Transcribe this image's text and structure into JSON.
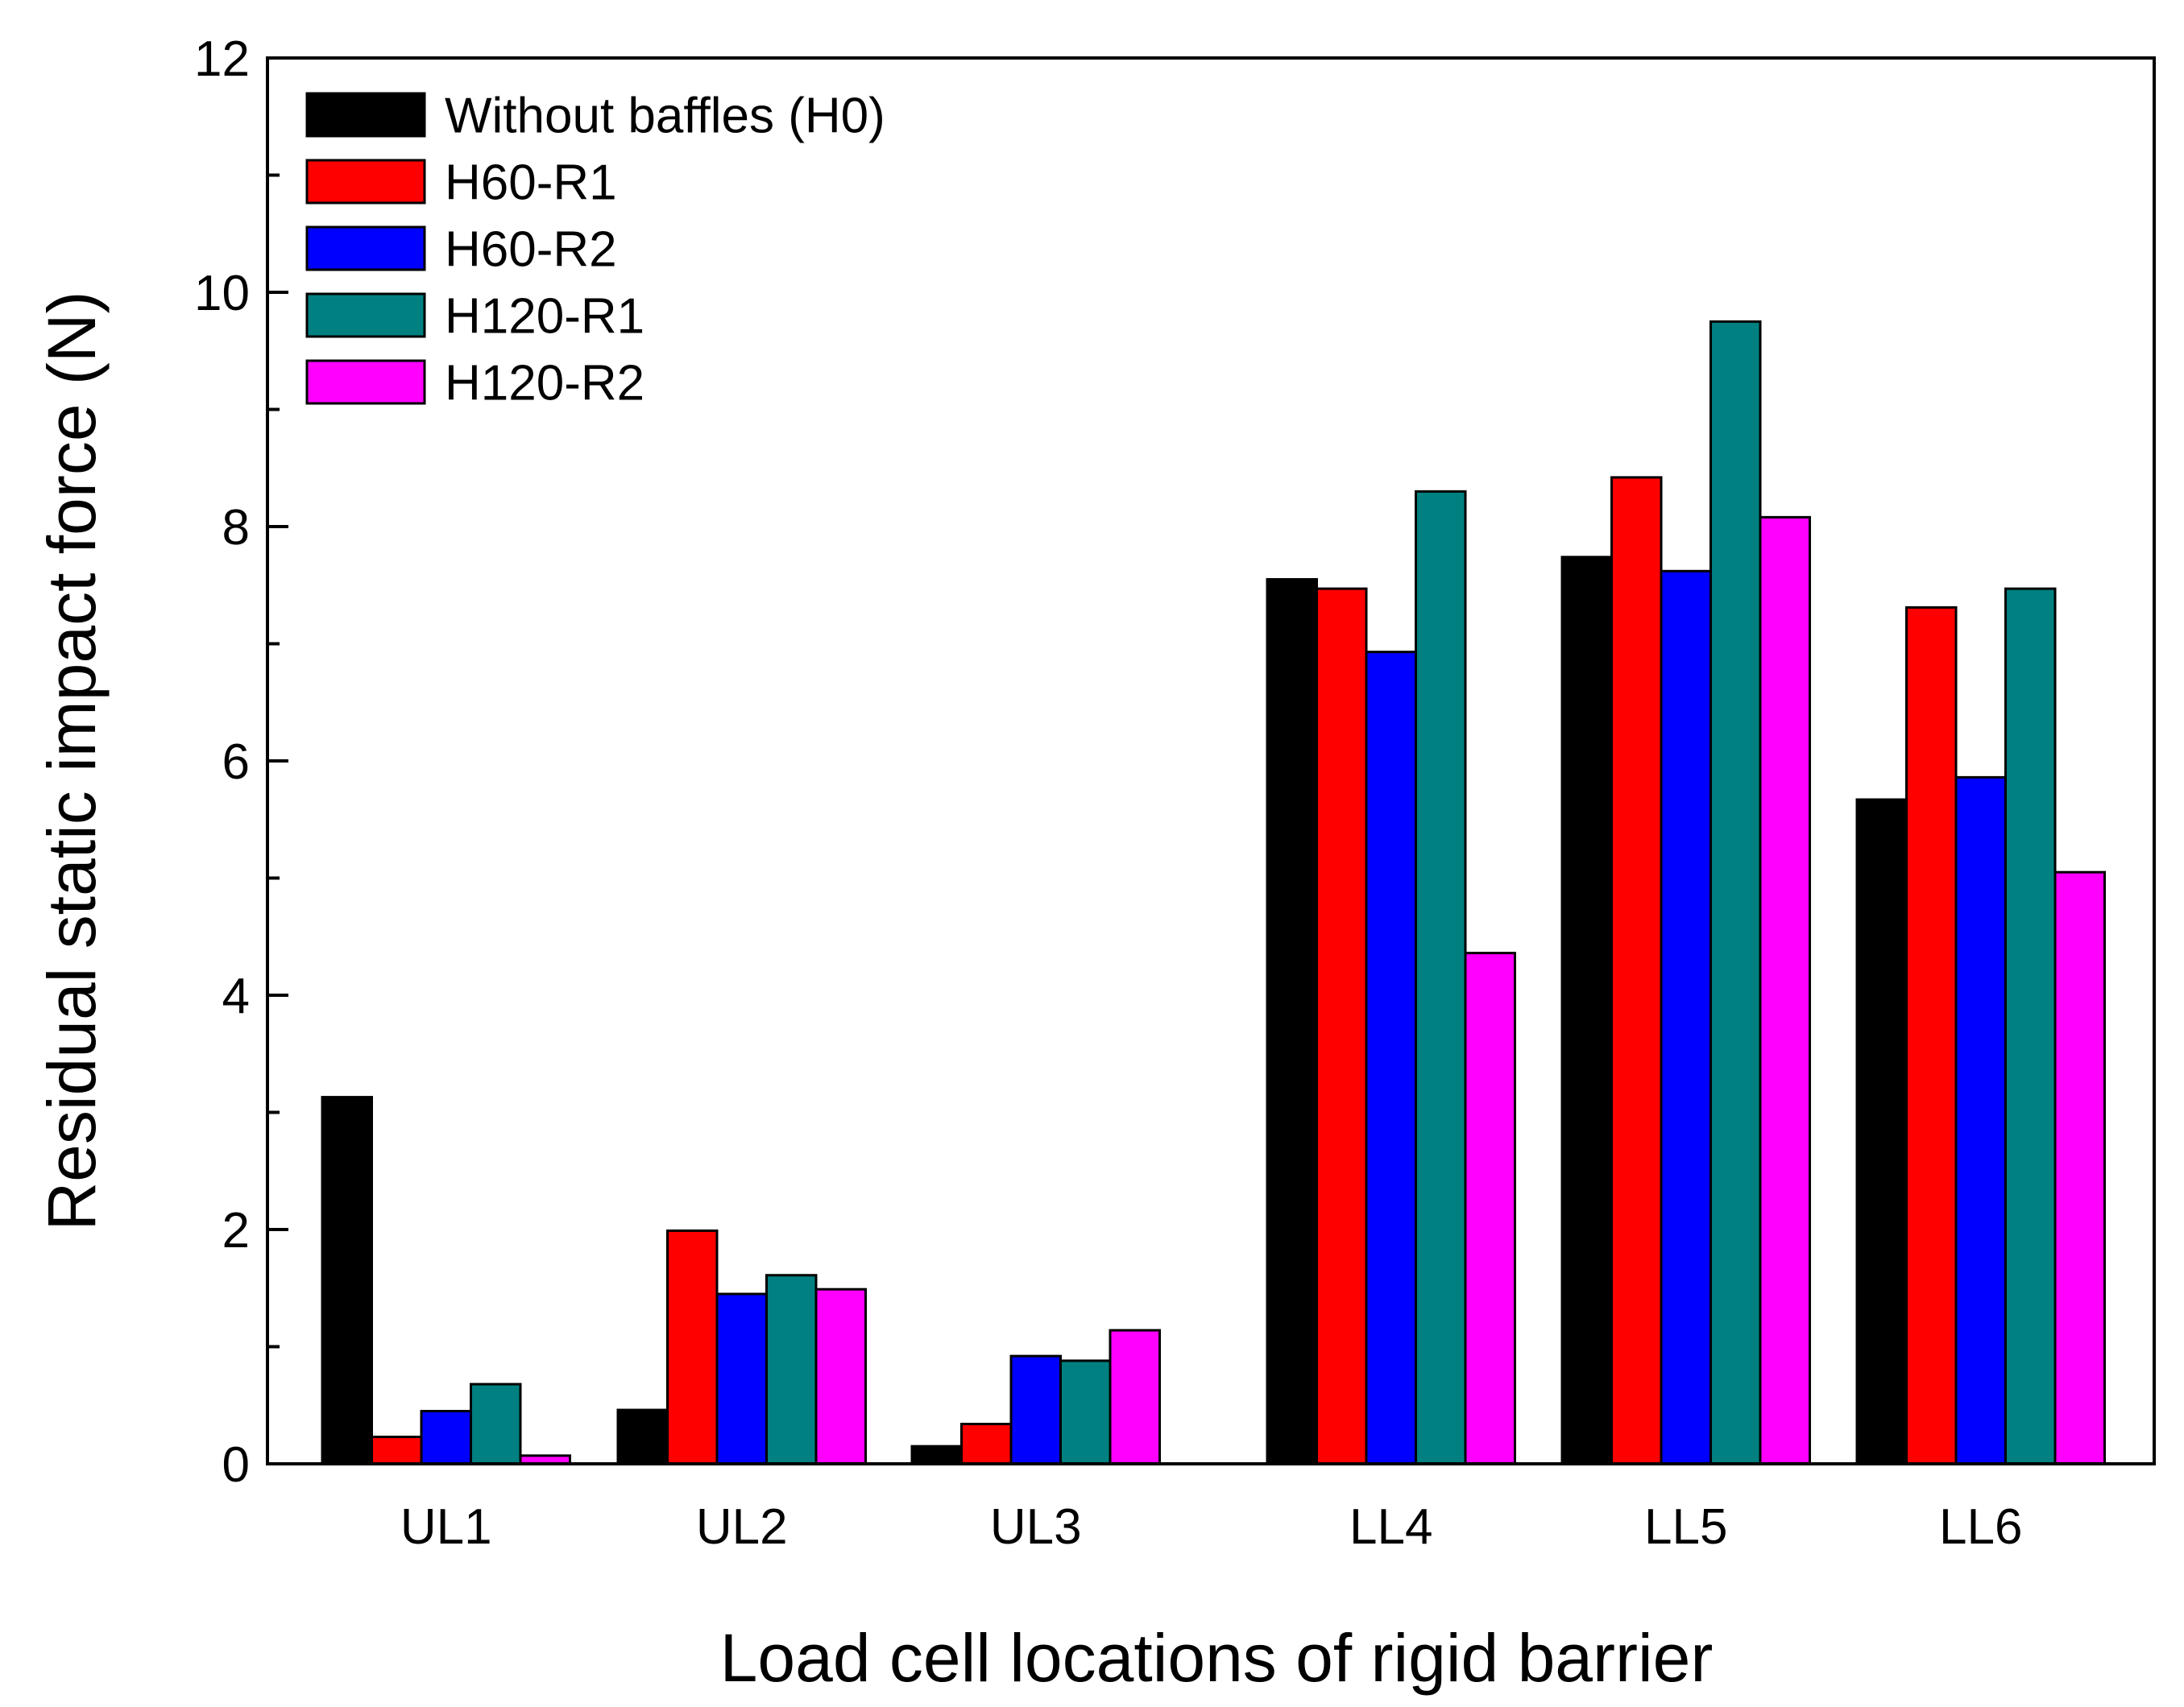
{
  "chart_data": {
    "type": "bar",
    "title": "",
    "xlabel": "Load cell locations of rigid barrier",
    "ylabel": "Residual static impact force (N)",
    "ylim": [
      0,
      12
    ],
    "yticks": [
      0,
      2,
      4,
      6,
      8,
      10,
      12
    ],
    "yticks_minor": [
      1,
      3,
      5,
      7,
      9,
      11
    ],
    "grid": false,
    "legend_position": "top-left",
    "categories": [
      "UL1",
      "UL2",
      "UL3",
      "LL4",
      "LL5",
      "LL6"
    ],
    "series": [
      {
        "name": "Without baffles (H0)",
        "color": "#000000",
        "values": [
          3.13,
          0.46,
          0.15,
          7.55,
          7.74,
          5.67
        ]
      },
      {
        "name": "H60-R1",
        "color": "#ff0000",
        "values": [
          0.23,
          1.99,
          0.34,
          7.47,
          8.42,
          7.31
        ]
      },
      {
        "name": "H60-R2",
        "color": "#0000ff",
        "values": [
          0.45,
          1.45,
          0.92,
          6.93,
          7.62,
          5.86
        ]
      },
      {
        "name": "H120-R1",
        "color": "#008080",
        "values": [
          0.68,
          1.61,
          0.88,
          8.3,
          9.75,
          7.47
        ]
      },
      {
        "name": "H120-R2",
        "color": "#ff00ff",
        "values": [
          0.07,
          1.49,
          1.14,
          4.36,
          8.08,
          5.05
        ]
      }
    ]
  }
}
